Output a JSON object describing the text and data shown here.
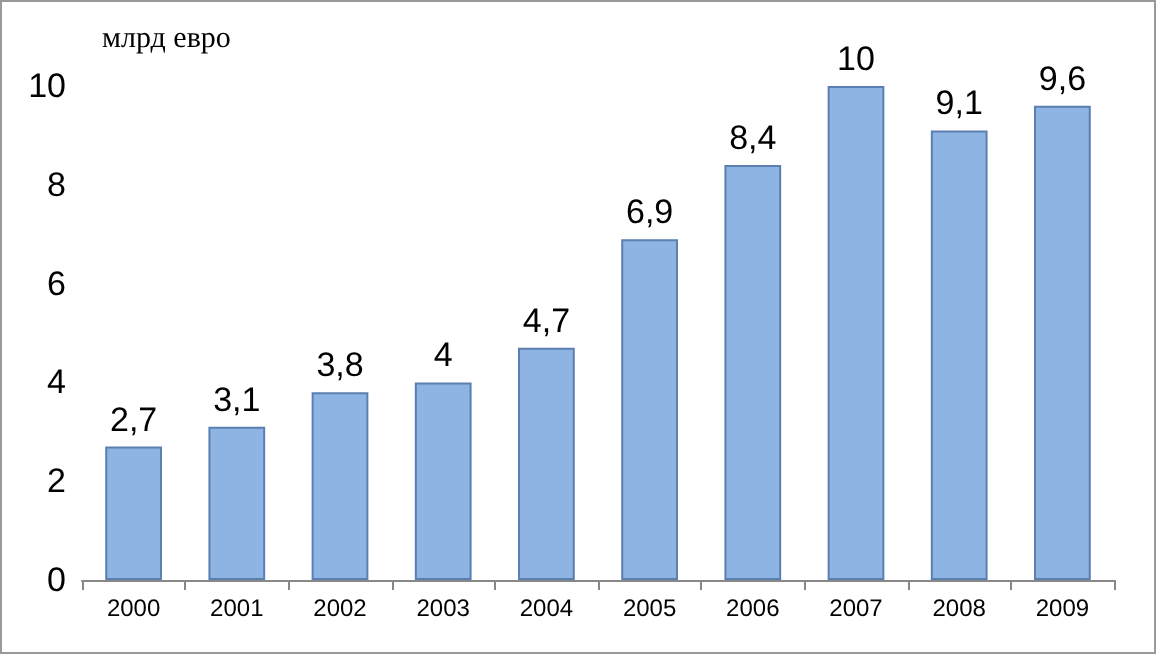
{
  "chart_data": {
    "type": "bar",
    "ylabel": "млрд евро",
    "categories": [
      "2000",
      "2001",
      "2002",
      "2003",
      "2004",
      "2005",
      "2006",
      "2007",
      "2008",
      "2009"
    ],
    "values": [
      2.7,
      3.1,
      3.8,
      4,
      4.7,
      6.9,
      8.4,
      10,
      9.1,
      9.6
    ],
    "value_labels": [
      "2,7",
      "3,1",
      "3,8",
      "4",
      "4,7",
      "6,9",
      "8,4",
      "10",
      "9,1",
      "9,6"
    ],
    "color": "#8eb4e3",
    "ylim": [
      0,
      10
    ],
    "yticks": [
      0,
      2,
      4,
      6,
      8,
      10
    ],
    "grid": false
  }
}
